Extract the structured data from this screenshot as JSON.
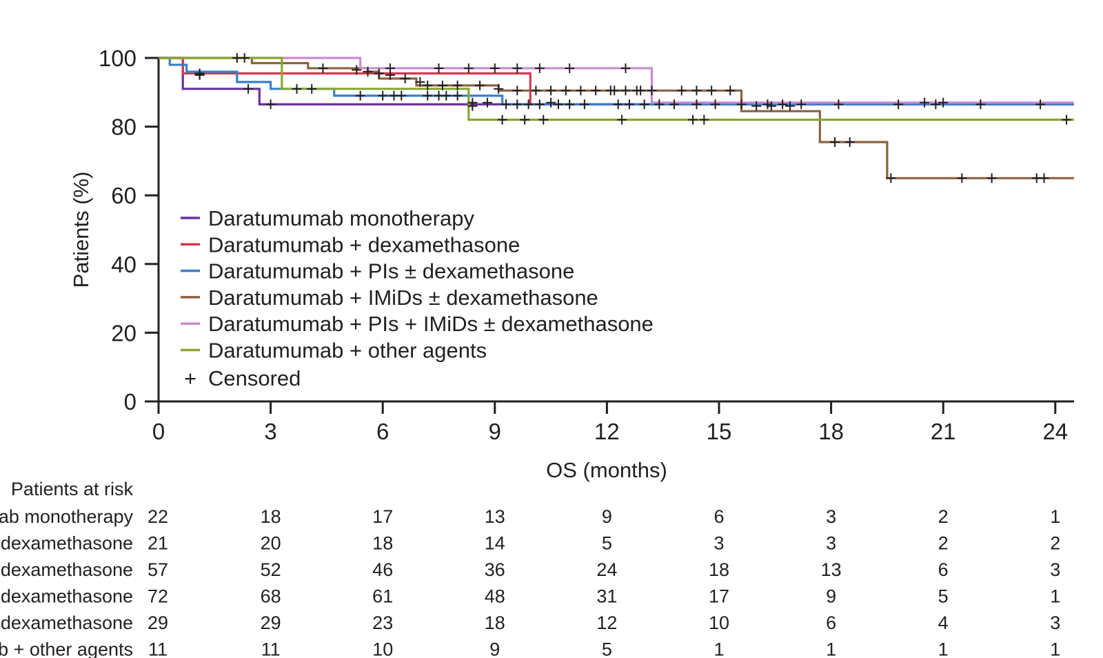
{
  "chart_data": {
    "type": "line",
    "step": true,
    "xlabel": "OS (months)",
    "ylabel": "Patients (%)",
    "xlim": [
      0,
      24.5
    ],
    "ylim": [
      0,
      100
    ],
    "x_ticks": [
      0,
      3,
      6,
      9,
      12,
      15,
      18,
      21,
      24
    ],
    "y_ticks": [
      0,
      20,
      40,
      60,
      80,
      100
    ],
    "grid": false,
    "legend_position": "center-left",
    "series": [
      {
        "name": "Daratumumab monotherapy",
        "color": "#6a2fa0",
        "steps": [
          [
            0,
            100
          ],
          [
            0.65,
            91
          ],
          [
            2.7,
            86.5
          ],
          [
            24.5,
            86.5
          ]
        ],
        "censored": [
          [
            1.1,
            95.5
          ],
          [
            2.4,
            91
          ],
          [
            3.0,
            86.5
          ]
        ]
      },
      {
        "name": "Daratumumab + dexamethasone",
        "color": "#d9364f",
        "steps": [
          [
            0,
            100
          ],
          [
            0.65,
            95.5
          ],
          [
            9.95,
            86.5
          ],
          [
            24.5,
            86.5
          ]
        ],
        "censored": [
          [
            1.1,
            95.2
          ],
          [
            10.2,
            86.5
          ],
          [
            10.5,
            87
          ],
          [
            20.5,
            87
          ],
          [
            21.0,
            87
          ]
        ]
      },
      {
        "name": "Daratumumab + PIs ± dexamethasone",
        "color": "#3a7fc9",
        "steps": [
          [
            0,
            100
          ],
          [
            0.3,
            98
          ],
          [
            0.75,
            96
          ],
          [
            2.1,
            93
          ],
          [
            3.0,
            91
          ],
          [
            4.7,
            89
          ],
          [
            9.2,
            86.5
          ],
          [
            24.5,
            86.5
          ]
        ],
        "censored": [
          [
            1.1,
            95
          ],
          [
            3.7,
            91
          ],
          [
            4.1,
            91
          ],
          [
            5.4,
            89
          ],
          [
            6.0,
            89
          ],
          [
            6.3,
            89
          ],
          [
            6.5,
            89
          ],
          [
            7.2,
            89
          ],
          [
            7.5,
            89
          ],
          [
            7.7,
            89
          ],
          [
            8.0,
            89
          ],
          [
            8.4,
            87
          ],
          [
            8.8,
            87
          ],
          [
            9.3,
            86.5
          ],
          [
            9.6,
            86.5
          ],
          [
            9.9,
            86.5
          ],
          [
            10.7,
            86.5
          ],
          [
            11.0,
            86.5
          ],
          [
            11.4,
            86.5
          ],
          [
            12.3,
            86.5
          ],
          [
            12.6,
            86.5
          ],
          [
            13.0,
            86.5
          ],
          [
            13.4,
            86.5
          ],
          [
            13.8,
            86.5
          ],
          [
            14.4,
            86.5
          ],
          [
            14.9,
            86.5
          ],
          [
            15.6,
            86.5
          ],
          [
            16.3,
            86.5
          ],
          [
            16.7,
            86.5
          ],
          [
            17.2,
            86.5
          ],
          [
            18.2,
            86.5
          ],
          [
            19.8,
            86.5
          ],
          [
            20.8,
            86.5
          ],
          [
            22.0,
            86.5
          ],
          [
            23.6,
            86.5
          ]
        ]
      },
      {
        "name": "Daratumumab + IMiDs ± dexamethasone",
        "color": "#8b6240",
        "steps": [
          [
            0,
            100
          ],
          [
            2.5,
            98.5
          ],
          [
            4.0,
            97
          ],
          [
            5.6,
            96
          ],
          [
            5.9,
            94
          ],
          [
            6.9,
            92
          ],
          [
            9.1,
            90.5
          ],
          [
            15.6,
            84.5
          ],
          [
            17.7,
            75.5
          ],
          [
            19.5,
            65
          ],
          [
            24.5,
            65
          ]
        ],
        "censored": [
          [
            2.1,
            100
          ],
          [
            2.3,
            100
          ],
          [
            4.4,
            97
          ],
          [
            5.3,
            96.5
          ],
          [
            5.6,
            96
          ],
          [
            5.9,
            95.5
          ],
          [
            6.2,
            95
          ],
          [
            6.6,
            94
          ],
          [
            7.0,
            93
          ],
          [
            7.2,
            92
          ],
          [
            7.6,
            92
          ],
          [
            8.0,
            92
          ],
          [
            8.6,
            92
          ],
          [
            9.1,
            91
          ],
          [
            9.6,
            90.5
          ],
          [
            10.1,
            90.5
          ],
          [
            10.5,
            90.5
          ],
          [
            10.9,
            90.5
          ],
          [
            11.3,
            90.5
          ],
          [
            11.7,
            90.5
          ],
          [
            12.2,
            90.5
          ],
          [
            12.5,
            90.5
          ],
          [
            12.8,
            90.5
          ],
          [
            13.2,
            90.5
          ],
          [
            14.0,
            90.5
          ],
          [
            14.4,
            90.5
          ],
          [
            14.8,
            90.5
          ],
          [
            15.3,
            90.5
          ],
          [
            16.0,
            86
          ],
          [
            16.4,
            86
          ],
          [
            16.9,
            86
          ],
          [
            18.1,
            75.5
          ],
          [
            18.5,
            75.5
          ],
          [
            19.6,
            65
          ],
          [
            21.5,
            65
          ],
          [
            22.3,
            65
          ],
          [
            23.5,
            65
          ],
          [
            23.7,
            65
          ]
        ]
      },
      {
        "name": "Daratumumab + PIs + IMiDs ± dexamethasone",
        "color": "#c98ad6",
        "steps": [
          [
            0,
            100
          ],
          [
            5.4,
            97
          ],
          [
            13.2,
            87
          ],
          [
            24.5,
            87
          ]
        ],
        "censored": [
          [
            6.2,
            97
          ],
          [
            7.5,
            97
          ],
          [
            8.3,
            97
          ],
          [
            9.0,
            97
          ],
          [
            9.6,
            97
          ],
          [
            10.2,
            97
          ],
          [
            11.0,
            97
          ],
          [
            12.5,
            97
          ],
          [
            12.1,
            90.5
          ],
          [
            12.9,
            90.5
          ]
        ]
      },
      {
        "name": "Daratumumab + other agents",
        "color": "#86a832",
        "steps": [
          [
            0,
            100
          ],
          [
            3.3,
            91
          ],
          [
            8.3,
            82
          ],
          [
            24.5,
            82
          ]
        ],
        "censored": [
          [
            8.4,
            86
          ],
          [
            9.2,
            82
          ],
          [
            9.8,
            82
          ],
          [
            10.3,
            82
          ],
          [
            12.4,
            82
          ],
          [
            14.3,
            82
          ],
          [
            14.6,
            82
          ],
          [
            24.3,
            82
          ]
        ]
      }
    ],
    "censored_label": "Censored",
    "censored_symbol": "+"
  },
  "risk_table": {
    "header": "Patients at risk",
    "rows": [
      {
        "label": "nab monotherapy",
        "values": [
          "22",
          "18",
          "17",
          "13",
          "9",
          "6",
          "3",
          "2",
          "1"
        ]
      },
      {
        "label": "+ dexamethasone",
        "values": [
          "21",
          "20",
          "18",
          "14",
          "5",
          "3",
          "3",
          "2",
          "2"
        ]
      },
      {
        "label": "± dexamethasone",
        "values": [
          "57",
          "52",
          "46",
          "36",
          "24",
          "18",
          "13",
          "6",
          "3"
        ]
      },
      {
        "label": "± dexamethasone",
        "values": [
          "72",
          "68",
          "61",
          "48",
          "31",
          "17",
          "9",
          "5",
          "1"
        ]
      },
      {
        "label": "± dexamethasone",
        "values": [
          "29",
          "29",
          "23",
          "18",
          "12",
          "10",
          "6",
          "4",
          "3"
        ]
      },
      {
        "label": "nab + other agents",
        "values": [
          "11",
          "11",
          "10",
          "9",
          "5",
          "1",
          "1",
          "1",
          "1"
        ]
      }
    ]
  }
}
